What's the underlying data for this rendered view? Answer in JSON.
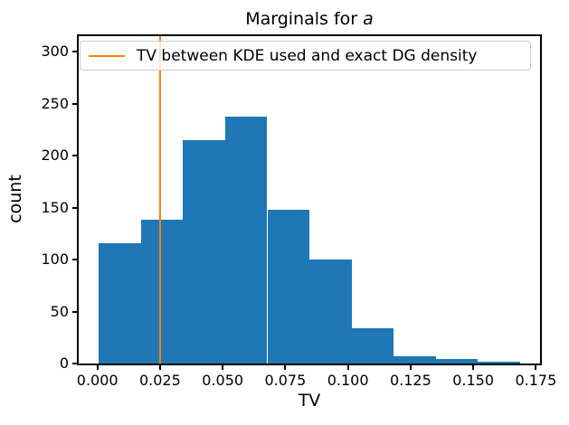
{
  "figure": {
    "title_prefix": "Marginals for ",
    "title_var": "a"
  },
  "legend": {
    "label": "TV between KDE used and exact DG density"
  },
  "axes": {
    "xlabel": "TV",
    "ylabel": "count",
    "xtick_labels": [
      "0.000",
      "0.025",
      "0.050",
      "0.075",
      "0.100",
      "0.125",
      "0.150",
      "0.175"
    ],
    "ytick_labels": [
      "0",
      "50",
      "100",
      "150",
      "200",
      "250",
      "300"
    ]
  },
  "colors": {
    "bar": "#1f77b4",
    "vline": "#ff7f0e",
    "spine": "#000000",
    "legend_border": "#cccccc"
  },
  "chart_data": {
    "type": "bar",
    "subtype": "histogram",
    "title": "Marginals for a",
    "xlabel": "TV",
    "ylabel": "count",
    "bin_start": 0.0006,
    "bin_width": 0.0168,
    "bin_edges": [
      0.0006,
      0.0174,
      0.0342,
      0.051,
      0.0678,
      0.0846,
      0.1014,
      0.1182,
      0.135,
      0.1518,
      0.1686
    ],
    "counts": [
      116,
      138,
      215,
      238,
      148,
      100,
      34,
      7,
      4,
      2
    ],
    "bar_color": "#1f77b4",
    "vline": {
      "x": 0.025,
      "color": "#ff7f0e",
      "label": "TV between KDE used and exact DG density"
    },
    "xticks": [
      0.0,
      0.025,
      0.05,
      0.075,
      0.1,
      0.125,
      0.15,
      0.175
    ],
    "yticks": [
      0,
      50,
      100,
      150,
      200,
      250,
      300
    ],
    "xlim": [
      -0.0082,
      0.1774
    ],
    "ylim": [
      0,
      315
    ],
    "grid": false,
    "legend_position": "upper left inside axes, spanning plot width"
  }
}
